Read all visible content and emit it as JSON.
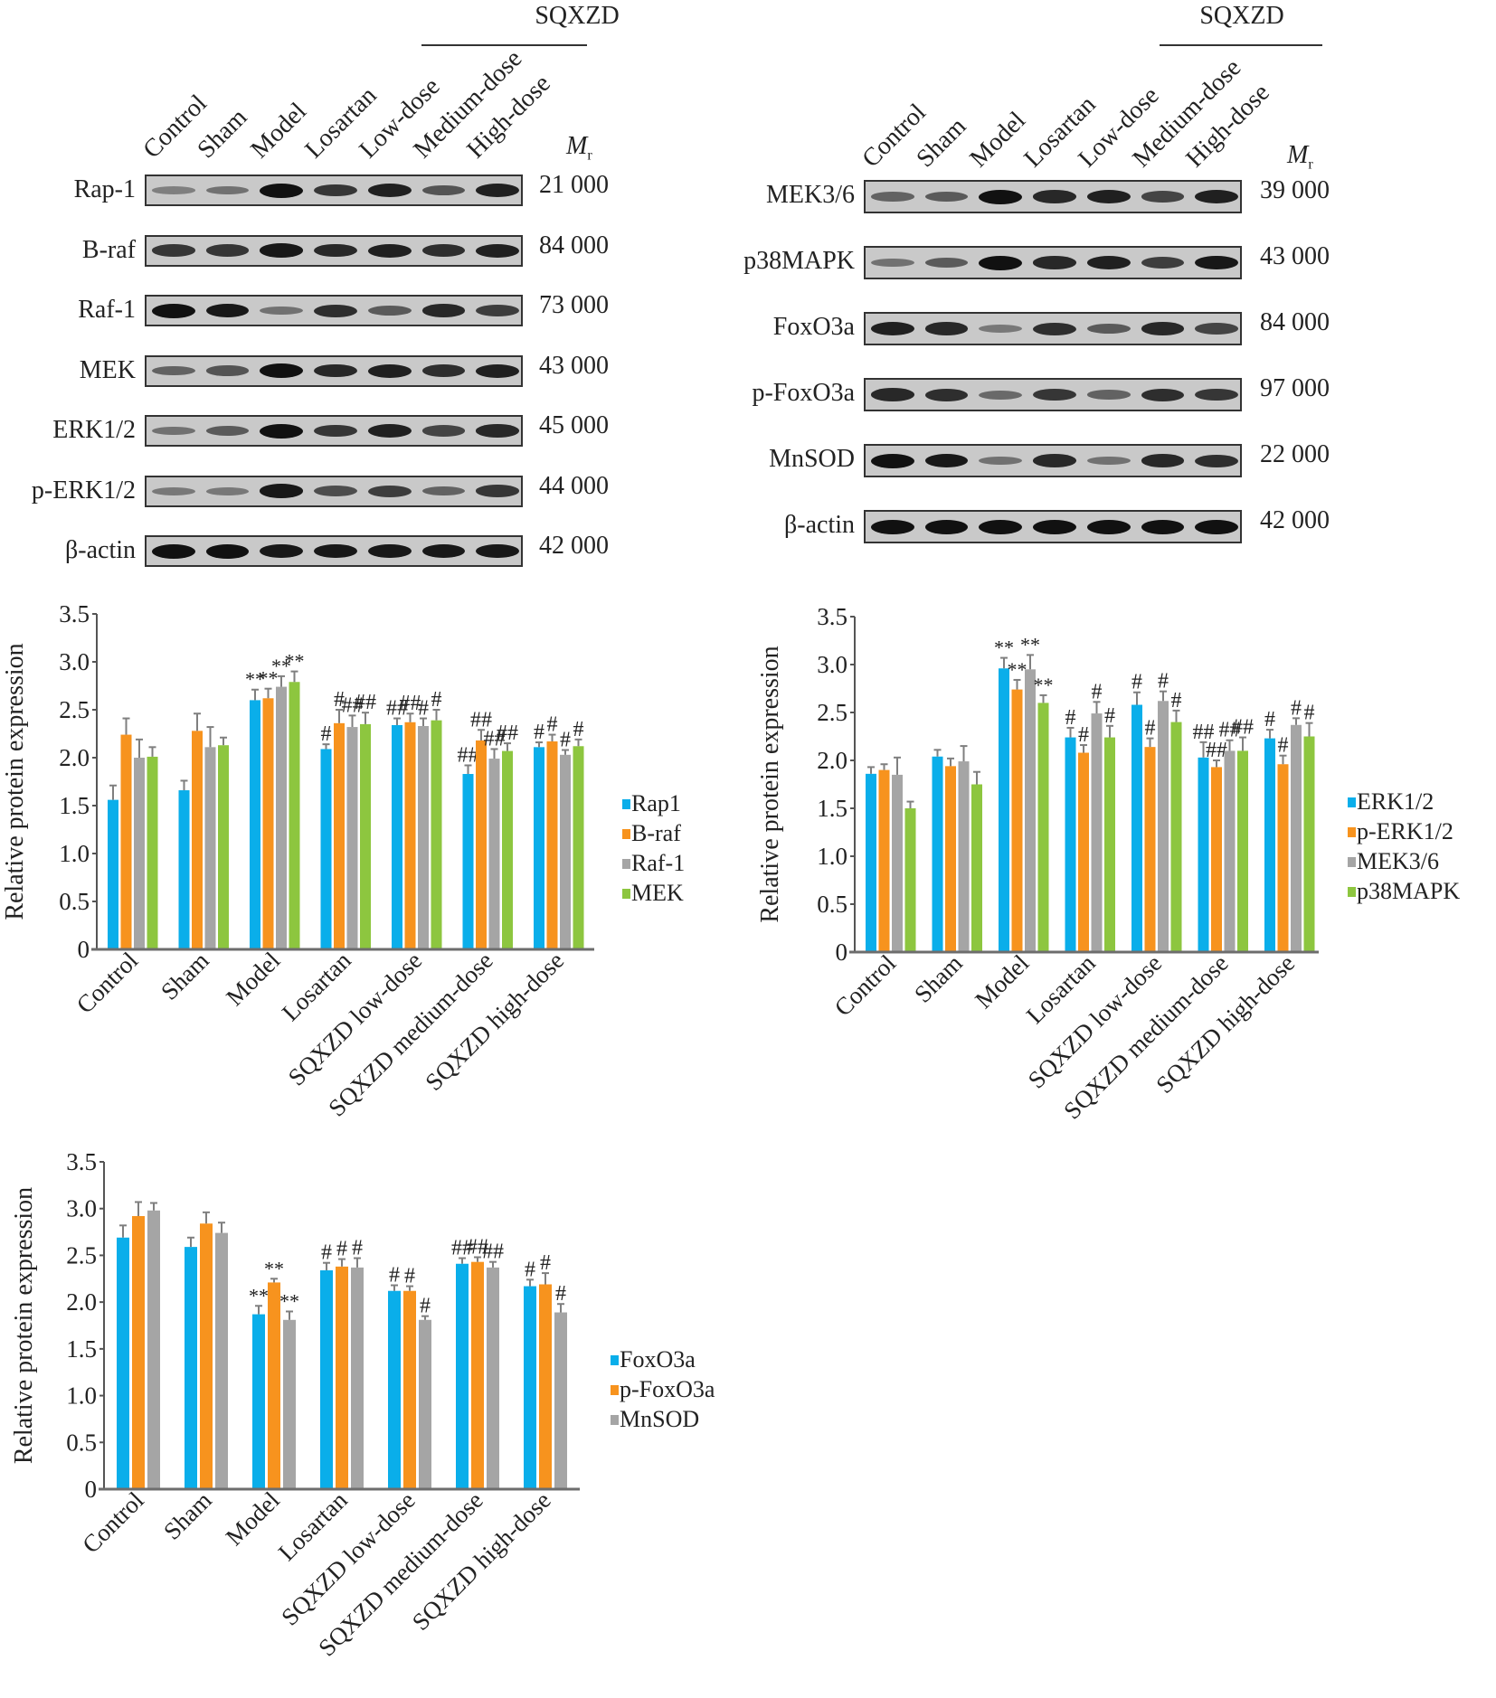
{
  "figure": {
    "blots": [
      {
        "id": "left",
        "group_header": "SQXZD",
        "lanes": [
          "Control",
          "Sham",
          "Model",
          "Losartan",
          "Low-dose",
          "Medium-dose",
          "High-dose"
        ],
        "mr_label": "M",
        "mr_sub": "r",
        "rows": [
          {
            "label": "Rap-1",
            "mw": "21 000",
            "intensity": [
              0.25,
              0.35,
              1.0,
              0.75,
              0.9,
              0.55,
              0.9
            ]
          },
          {
            "label": "B-raf",
            "mw": "84 000",
            "intensity": [
              0.75,
              0.75,
              0.95,
              0.85,
              0.9,
              0.8,
              0.9
            ]
          },
          {
            "label": "Raf-1",
            "mw": "73 000",
            "intensity": [
              1.0,
              0.95,
              0.35,
              0.8,
              0.5,
              0.85,
              0.7
            ]
          },
          {
            "label": "MEK",
            "mw": "43 000",
            "intensity": [
              0.45,
              0.55,
              1.0,
              0.85,
              0.9,
              0.8,
              0.9
            ]
          },
          {
            "label": "ERK1/2",
            "mw": "45 000",
            "intensity": [
              0.35,
              0.5,
              1.0,
              0.75,
              0.9,
              0.65,
              0.85
            ]
          },
          {
            "label": "p-ERK1/2",
            "mw": "44 000",
            "intensity": [
              0.3,
              0.3,
              0.95,
              0.6,
              0.7,
              0.45,
              0.75
            ]
          },
          {
            "label": "β-actin",
            "mw": "42 000",
            "intensity": [
              1.0,
              1.0,
              0.95,
              0.95,
              0.95,
              0.95,
              0.95
            ]
          }
        ]
      },
      {
        "id": "right",
        "group_header": "SQXZD",
        "lanes": [
          "Control",
          "Sham",
          "Model",
          "Losartan",
          "Low-dose",
          "Medium-dose",
          "High-dose"
        ],
        "mr_label": "M",
        "mr_sub": "r",
        "rows": [
          {
            "label": "MEK3/6",
            "mw": "39 000",
            "intensity": [
              0.45,
              0.5,
              1.0,
              0.85,
              0.9,
              0.65,
              0.9
            ]
          },
          {
            "label": "p38MAPK",
            "mw": "43 000",
            "intensity": [
              0.35,
              0.5,
              1.0,
              0.85,
              0.9,
              0.7,
              0.95
            ]
          },
          {
            "label": "FoxO3a",
            "mw": "84 000",
            "intensity": [
              0.9,
              0.85,
              0.3,
              0.8,
              0.5,
              0.85,
              0.65
            ]
          },
          {
            "label": "p-FoxO3a",
            "mw": "97 000",
            "intensity": [
              0.85,
              0.8,
              0.4,
              0.75,
              0.45,
              0.8,
              0.75
            ]
          },
          {
            "label": "MnSOD",
            "mw": "22 000",
            "intensity": [
              1.0,
              0.95,
              0.35,
              0.85,
              0.35,
              0.85,
              0.8
            ]
          },
          {
            "label": "β-actin",
            "mw": "42 000",
            "intensity": [
              1.0,
              1.0,
              1.0,
              1.0,
              1.0,
              1.0,
              1.0
            ]
          }
        ]
      }
    ]
  },
  "chart_data": [
    {
      "type": "bar",
      "title": "",
      "xlabel": "",
      "ylabel": "Relative protein expression",
      "ylim": [
        0,
        3.5
      ],
      "yticks": [
        "0",
        "0.5",
        "1.0",
        "1.5",
        "2.0",
        "2.5",
        "3.0",
        "3.5"
      ],
      "grid": false,
      "legend_position": "right",
      "categories": [
        "Control",
        "Sham",
        "Model",
        "Losartan",
        "SQXZD low-dose",
        "SQXZD medium-dose",
        "SQXZD high-dose"
      ],
      "series": [
        {
          "name": "Rap1",
          "color": "#0aaeea",
          "values": [
            1.56,
            1.66,
            2.6,
            2.09,
            2.34,
            1.83,
            2.11
          ],
          "errors": [
            0.15,
            0.1,
            0.11,
            0.05,
            0.07,
            0.09,
            0.05
          ],
          "marks": [
            "",
            "",
            "**",
            "#",
            "##",
            "##",
            "#"
          ]
        },
        {
          "name": "B-raf",
          "color": "#f7931e",
          "values": [
            2.24,
            2.28,
            2.62,
            2.36,
            2.37,
            2.18,
            2.17
          ],
          "errors": [
            0.17,
            0.18,
            0.1,
            0.14,
            0.09,
            0.11,
            0.07
          ],
          "marks": [
            "",
            "",
            "**",
            "#",
            "##",
            "##",
            "#"
          ]
        },
        {
          "name": "Raf-1",
          "color": "#a5a5a5",
          "values": [
            2.0,
            2.11,
            2.74,
            2.32,
            2.33,
            1.99,
            2.03
          ],
          "errors": [
            0.19,
            0.21,
            0.11,
            0.12,
            0.08,
            0.1,
            0.05
          ],
          "marks": [
            "",
            "",
            "**",
            "##",
            "#",
            "##",
            "#"
          ]
        },
        {
          "name": "MEK",
          "color": "#8dc63f",
          "values": [
            2.01,
            2.13,
            2.79,
            2.35,
            2.39,
            2.07,
            2.12
          ],
          "errors": [
            0.1,
            0.08,
            0.11,
            0.12,
            0.11,
            0.08,
            0.07
          ],
          "marks": [
            "",
            "",
            "**",
            "##",
            "#",
            "##",
            "#"
          ]
        }
      ]
    },
    {
      "type": "bar",
      "title": "",
      "xlabel": "",
      "ylabel": "Relative protein expression",
      "ylim": [
        0,
        3.5
      ],
      "yticks": [
        "0",
        "0.5",
        "1.0",
        "1.5",
        "2.0",
        "2.5",
        "3.0",
        "3.5"
      ],
      "grid": false,
      "legend_position": "right",
      "categories": [
        "Control",
        "Sham",
        "Model",
        "Losartan",
        "SQXZD low-dose",
        "SQXZD medium-dose",
        "SQXZD high-dose"
      ],
      "series": [
        {
          "name": "ERK1/2",
          "color": "#0aaeea",
          "values": [
            1.86,
            2.04,
            2.96,
            2.24,
            2.58,
            2.03,
            2.23
          ],
          "errors": [
            0.07,
            0.07,
            0.11,
            0.1,
            0.13,
            0.16,
            0.09
          ],
          "marks": [
            "",
            "",
            "**",
            "#",
            "#",
            "##",
            "#"
          ]
        },
        {
          "name": "p-ERK1/2",
          "color": "#f7931e",
          "values": [
            1.9,
            1.94,
            2.74,
            2.08,
            2.14,
            1.93,
            1.96
          ],
          "errors": [
            0.06,
            0.08,
            0.1,
            0.08,
            0.09,
            0.07,
            0.09
          ],
          "marks": [
            "",
            "",
            "**",
            "#",
            "#",
            "##",
            "#"
          ]
        },
        {
          "name": "MEK3/6",
          "color": "#a5a5a5",
          "values": [
            1.85,
            1.99,
            2.95,
            2.49,
            2.62,
            2.1,
            2.37
          ],
          "errors": [
            0.18,
            0.16,
            0.15,
            0.12,
            0.1,
            0.11,
            0.07
          ],
          "marks": [
            "",
            "",
            "**",
            "#",
            "#",
            "##",
            "#"
          ]
        },
        {
          "name": "p38MAPK",
          "color": "#8dc63f",
          "values": [
            1.5,
            1.75,
            2.6,
            2.24,
            2.4,
            2.1,
            2.25
          ],
          "errors": [
            0.07,
            0.13,
            0.08,
            0.12,
            0.12,
            0.14,
            0.14
          ],
          "marks": [
            "",
            "",
            "**",
            "#",
            "#",
            "##",
            "#"
          ]
        }
      ]
    },
    {
      "type": "bar",
      "title": "",
      "xlabel": "",
      "ylabel": "Relative protein expression",
      "ylim": [
        0,
        3.5
      ],
      "yticks": [
        "0",
        "0.5",
        "1.0",
        "1.5",
        "2.0",
        "2.5",
        "3.0",
        "3.5"
      ],
      "grid": false,
      "legend_position": "right",
      "categories": [
        "Control",
        "Sham",
        "Model",
        "Losartan",
        "SQXZD low-dose",
        "SQXZD medium-dose",
        "SQXZD high-dose"
      ],
      "series": [
        {
          "name": "FoxO3a",
          "color": "#0aaeea",
          "values": [
            2.69,
            2.59,
            1.87,
            2.34,
            2.12,
            2.41,
            2.17
          ],
          "errors": [
            0.13,
            0.1,
            0.09,
            0.08,
            0.06,
            0.06,
            0.07
          ],
          "marks": [
            "",
            "",
            "**",
            "#",
            "#",
            "##",
            "#"
          ]
        },
        {
          "name": "p-FoxO3a",
          "color": "#f7931e",
          "values": [
            2.92,
            2.84,
            2.21,
            2.38,
            2.12,
            2.43,
            2.19
          ],
          "errors": [
            0.15,
            0.12,
            0.04,
            0.08,
            0.05,
            0.05,
            0.12
          ],
          "marks": [
            "",
            "",
            "**",
            "#",
            "#",
            "##",
            "#"
          ]
        },
        {
          "name": "MnSOD",
          "color": "#a5a5a5",
          "values": [
            2.98,
            2.74,
            1.81,
            2.37,
            1.81,
            2.37,
            1.89
          ],
          "errors": [
            0.08,
            0.11,
            0.09,
            0.1,
            0.04,
            0.06,
            0.09
          ],
          "marks": [
            "",
            "",
            "**",
            "#",
            "#",
            "##",
            "#"
          ]
        }
      ]
    }
  ]
}
